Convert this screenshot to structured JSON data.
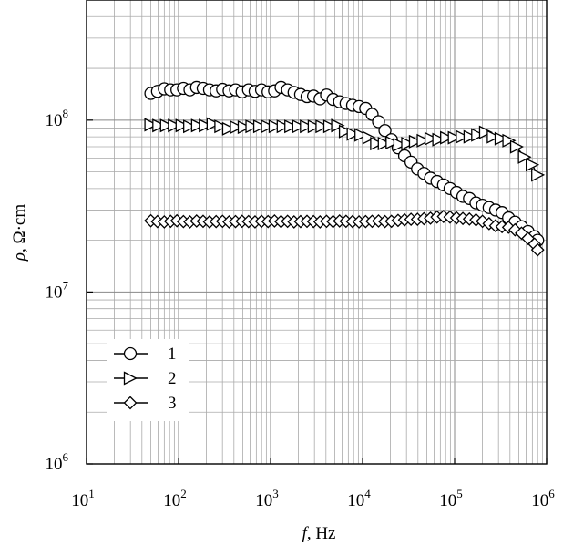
{
  "chart_data": {
    "type": "scatter",
    "title": "",
    "xlabel": {
      "symbol": "f",
      "rest": ", Hz"
    },
    "ylabel": {
      "symbol": "ρ",
      "rest": ", Ω·cm"
    },
    "xscale": "log",
    "yscale": "log",
    "xlim": [
      10,
      1000000
    ],
    "ylim": [
      1000000,
      500000000
    ],
    "grid": true,
    "legend_position": "bottom-left",
    "x_ticks": [
      {
        "base": "10",
        "exp": "1"
      },
      {
        "base": "10",
        "exp": "2"
      },
      {
        "base": "10",
        "exp": "3"
      },
      {
        "base": "10",
        "exp": "4"
      },
      {
        "base": "10",
        "exp": "5"
      },
      {
        "base": "10",
        "exp": "6"
      }
    ],
    "y_ticks": [
      {
        "base": "10",
        "exp": "6"
      },
      {
        "base": "10",
        "exp": "7"
      },
      {
        "base": "10",
        "exp": "8"
      }
    ],
    "series": [
      {
        "name": "1",
        "marker": "circle",
        "x": [
          50,
          59,
          70,
          82,
          96,
          113,
          133,
          157,
          185,
          217,
          256,
          301,
          354,
          416,
          490,
          576,
          678,
          798,
          939,
          1105,
          1300,
          1530,
          1800,
          2120,
          2490,
          2930,
          3450,
          4060,
          4780,
          5620,
          6610,
          7780,
          9160,
          10800,
          12700,
          14900,
          17500,
          20600,
          24300,
          28600,
          33600,
          39500,
          46500,
          54700,
          64400,
          75800,
          89200,
          105000,
          123000,
          145000,
          171000,
          201000,
          237000,
          279000,
          328000,
          386000,
          454000,
          534000,
          628000,
          739000,
          800000
        ],
        "y": [
          143000000,
          147000000,
          152000000,
          150000000,
          150000000,
          153000000,
          150000000,
          155000000,
          153000000,
          150000000,
          148000000,
          151000000,
          148000000,
          150000000,
          146000000,
          150000000,
          147000000,
          150000000,
          146000000,
          148000000,
          155000000,
          150000000,
          145000000,
          141000000,
          137000000,
          138000000,
          133000000,
          140000000,
          132000000,
          128000000,
          125000000,
          122000000,
          120000000,
          117000000,
          108000000,
          98000000,
          87000000,
          77000000,
          69000000,
          62000000,
          57000000,
          52000000,
          49000000,
          46000000,
          44000000,
          42000000,
          40000000,
          38000000,
          36000000,
          35000000,
          33000000,
          32000000,
          31000000,
          30000000,
          29000000,
          27000000,
          25500000,
          24000000,
          22500000,
          21000000,
          20000000
        ]
      },
      {
        "name": "2",
        "marker": "triangle-right",
        "x": [
          50,
          61,
          74,
          90,
          109,
          132,
          161,
          195,
          237,
          288,
          350,
          425,
          516,
          627,
          762,
          925,
          1120,
          1370,
          1660,
          2020,
          2450,
          2980,
          3620,
          4400,
          5350,
          6500,
          7900,
          9600,
          11700,
          14200,
          17200,
          20900,
          25400,
          30900,
          37500,
          45600,
          55400,
          67300,
          81800,
          99300,
          121000,
          147000,
          178000,
          217000,
          263000,
          320000,
          389000,
          472000,
          574000,
          697000,
          800000
        ],
        "y": [
          94000000,
          93000000,
          93000000,
          93000000,
          93000000,
          92000000,
          93000000,
          93000000,
          95000000,
          92000000,
          89000000,
          91000000,
          91000000,
          92000000,
          92000000,
          92000000,
          92000000,
          92000000,
          92000000,
          92000000,
          92000000,
          92000000,
          92000000,
          92000000,
          93000000,
          86000000,
          83000000,
          82000000,
          79000000,
          73000000,
          73000000,
          74000000,
          72000000,
          73000000,
          75000000,
          76000000,
          78000000,
          77000000,
          79000000,
          79000000,
          80000000,
          80000000,
          82000000,
          85000000,
          80000000,
          78000000,
          76000000,
          70000000,
          61000000,
          55000000,
          48000000
        ]
      },
      {
        "name": "3",
        "marker": "diamond",
        "x": [
          50,
          59,
          70,
          82,
          96,
          113,
          133,
          157,
          185,
          217,
          256,
          301,
          354,
          416,
          490,
          576,
          678,
          798,
          939,
          1105,
          1300,
          1530,
          1800,
          2120,
          2490,
          2930,
          3450,
          4060,
          4780,
          5620,
          6610,
          7780,
          9160,
          10800,
          12700,
          14900,
          17500,
          20600,
          24300,
          28600,
          33600,
          39500,
          46500,
          54700,
          64400,
          75800,
          89200,
          105000,
          123000,
          145000,
          171000,
          201000,
          237000,
          279000,
          328000,
          386000,
          454000,
          534000,
          628000,
          739000,
          800000
        ],
        "y": [
          26000000,
          25700000,
          25600000,
          25800000,
          26000000,
          25700000,
          25600000,
          25900000,
          25800000,
          25600000,
          25700000,
          25800000,
          25600000,
          25700000,
          25800000,
          25700000,
          25600000,
          25800000,
          25700000,
          25900000,
          25700000,
          25800000,
          25600000,
          25700000,
          25800000,
          25700000,
          25600000,
          25800000,
          25700000,
          25900000,
          25800000,
          25700000,
          25600000,
          25700000,
          25800000,
          25900000,
          25700000,
          25800000,
          26100000,
          26300000,
          26500000,
          26500000,
          26700000,
          26900000,
          27300000,
          27500000,
          27300000,
          27000000,
          26800000,
          26600000,
          26300000,
          25800000,
          25000000,
          24300000,
          24000000,
          23800000,
          23000000,
          22000000,
          20500000,
          19000000,
          17600000
        ]
      }
    ]
  }
}
